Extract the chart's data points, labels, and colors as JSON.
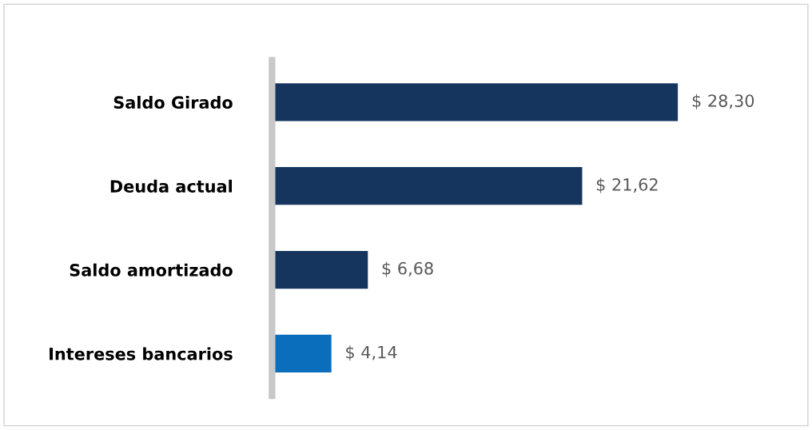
{
  "chart_data": {
    "type": "bar",
    "orientation": "horizontal",
    "categories": [
      "Saldo Girado",
      "Deuda actual",
      "Saldo amortizado",
      "Intereses bancarios"
    ],
    "values": [
      28.3,
      21.62,
      6.68,
      4.14
    ],
    "value_labels": [
      "$ 28,30",
      "$ 21,62",
      "$ 6,68",
      "$ 4,14"
    ],
    "colors": [
      "#15355f",
      "#15355f",
      "#15355f",
      "#0a6ebd"
    ],
    "grid": false,
    "legend": false,
    "tick_labels": "y"
  }
}
